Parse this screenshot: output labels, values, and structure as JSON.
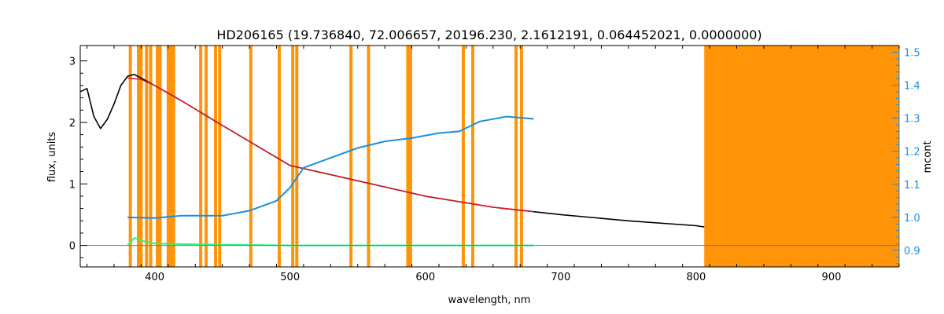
{
  "chart_data": {
    "type": "line",
    "title": "HD206165    (19.736840, 72.006657, 20196.230, 2.1612191, 0.064452021, 0.0000000)",
    "xlabel": "wavelength, nm",
    "ylabel": "flux, units",
    "y2label": "mcont",
    "xlim": [
      345,
      950
    ],
    "ylim": [
      -0.35,
      3.25
    ],
    "y2lim": [
      0.85,
      1.52
    ],
    "x_ticks": [
      400,
      500,
      600,
      700,
      800,
      900
    ],
    "y_ticks": [
      0,
      1,
      2,
      3
    ],
    "y2_ticks": [
      0.9,
      1.0,
      1.1,
      1.2,
      1.3,
      1.4,
      1.5
    ],
    "grid": false,
    "colors": {
      "observed": "#000000",
      "model": "#e8141e",
      "residual": "#2ef07a",
      "mcont": "#1b8ee0",
      "mask": "#ff9408",
      "right_axis": "#1b8ee0"
    },
    "masked_lines_nm": [
      382,
      388,
      390,
      394,
      397,
      402,
      404,
      410,
      412,
      414,
      434,
      438,
      445,
      448,
      471,
      492,
      502,
      505,
      545,
      558,
      587,
      589,
      628,
      635,
      667,
      671
    ],
    "masked_region_nm": [
      806,
      950
    ],
    "series": [
      {
        "key": "observed",
        "x": [
          345,
          350,
          355,
          360,
          365,
          370,
          375,
          380,
          385,
          390,
          400,
          420,
          450,
          500,
          550,
          600,
          650,
          700,
          750,
          800,
          806
        ],
        "y": [
          2.5,
          2.55,
          2.1,
          1.9,
          2.05,
          2.3,
          2.6,
          2.75,
          2.78,
          2.72,
          2.6,
          2.35,
          1.95,
          1.3,
          1.05,
          0.8,
          0.62,
          0.5,
          0.4,
          0.32,
          0.3
        ]
      },
      {
        "key": "model",
        "x": [
          380,
          390,
          400,
          420,
          450,
          500,
          550,
          600,
          650,
          680
        ],
        "y": [
          2.72,
          2.7,
          2.6,
          2.35,
          1.95,
          1.3,
          1.05,
          0.8,
          0.62,
          0.55
        ]
      },
      {
        "key": "mcont",
        "axis": "right",
        "x": [
          380,
          400,
          420,
          450,
          470,
          490,
          500,
          510,
          530,
          550,
          570,
          590,
          610,
          625,
          640,
          660,
          680
        ],
        "y": [
          1.0,
          0.998,
          1.005,
          1.005,
          1.02,
          1.05,
          1.09,
          1.15,
          1.18,
          1.21,
          1.23,
          1.24,
          1.255,
          1.26,
          1.29,
          1.305,
          1.298
        ]
      },
      {
        "key": "residual",
        "x": [
          380,
          385,
          390,
          395,
          400,
          420,
          450,
          500,
          550,
          600,
          650,
          680
        ],
        "y": [
          0.0,
          0.12,
          0.08,
          0.05,
          0.03,
          0.02,
          0.01,
          0.0,
          0.0,
          0.0,
          0.0,
          0.0
        ]
      }
    ]
  }
}
